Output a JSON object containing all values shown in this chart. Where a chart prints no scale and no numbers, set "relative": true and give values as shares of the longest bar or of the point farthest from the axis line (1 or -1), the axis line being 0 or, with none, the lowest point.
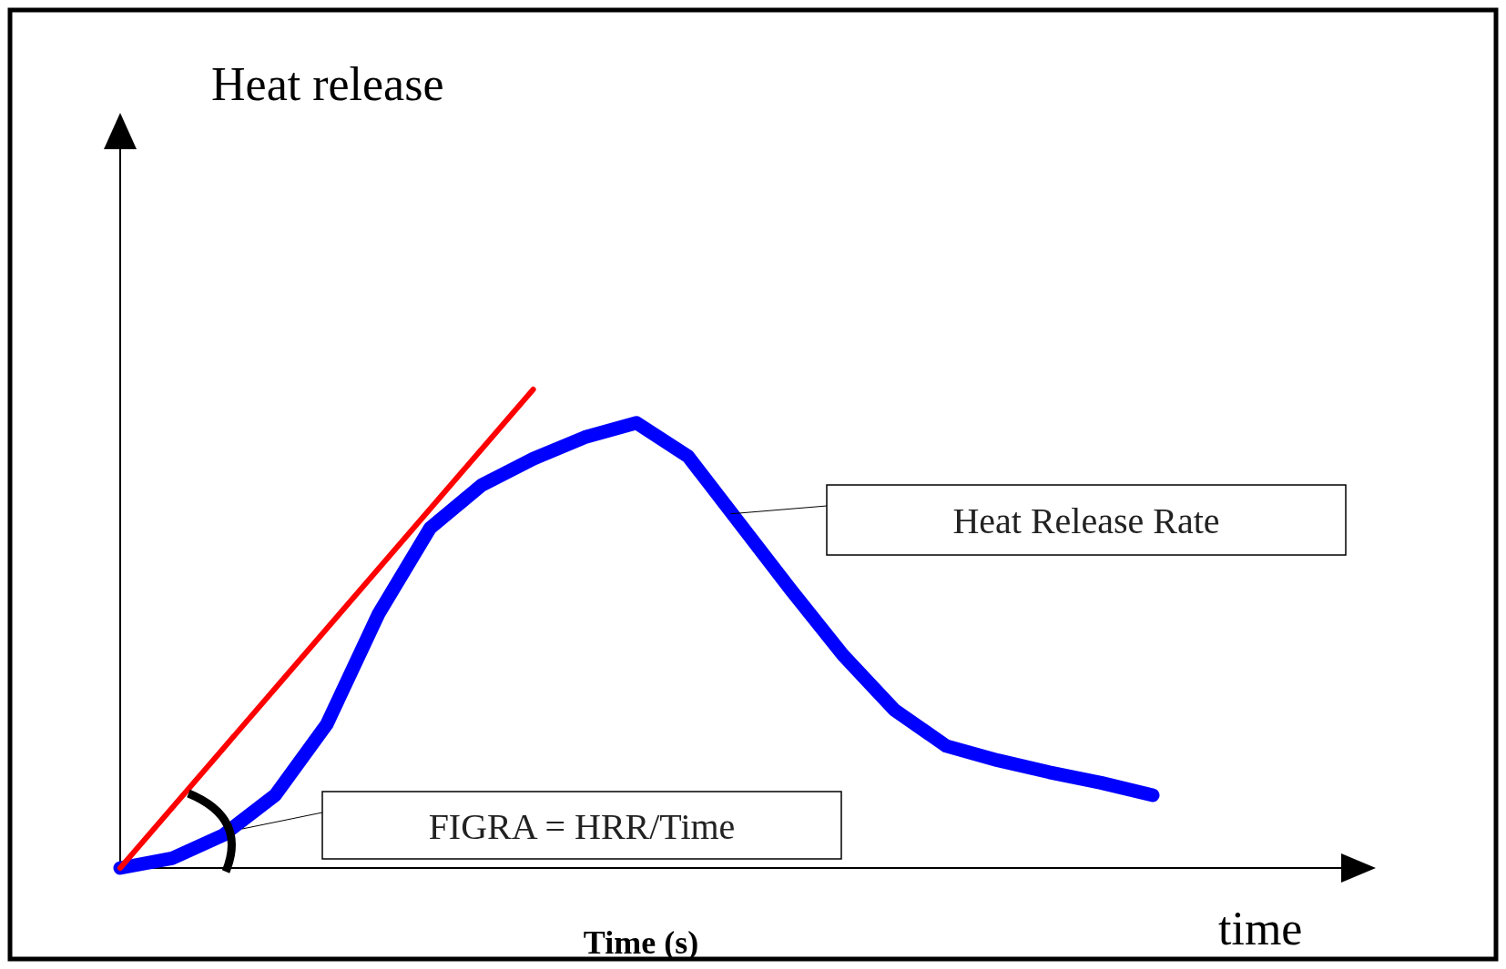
{
  "chart_data": {
    "type": "line",
    "relative": true,
    "xlabel": "time",
    "categories": [
      null,
      null,
      null,
      null,
      null,
      null,
      null,
      null,
      null,
      null,
      null,
      null,
      null,
      null,
      null,
      null,
      null,
      null,
      null,
      null,
      null
    ],
    "series": [
      {
        "name": "Heat Release Rate",
        "color": "#0000ff",
        "values": [
          0,
          0.02,
          0.069,
          0.152,
          0.3,
          0.53,
          0.71,
          0.8,
          0.855,
          0.9,
          0.93,
          0.86,
          0.72,
          0.58,
          0.445,
          0.33,
          0.255,
          0.225,
          0.2,
          0.178,
          0.152
        ]
      },
      {
        "color": "#ff0000",
        "values": [
          0,
          0.125,
          0.25,
          0.375,
          0.5,
          0.625,
          0.75,
          0.875,
          1,
          null,
          null,
          null,
          null,
          null,
          null,
          null,
          null,
          null,
          null,
          null,
          null
        ]
      }
    ],
    "annotations": [
      "Heat release",
      "Time (s)",
      "FIGRA = HRR/Time"
    ]
  }
}
